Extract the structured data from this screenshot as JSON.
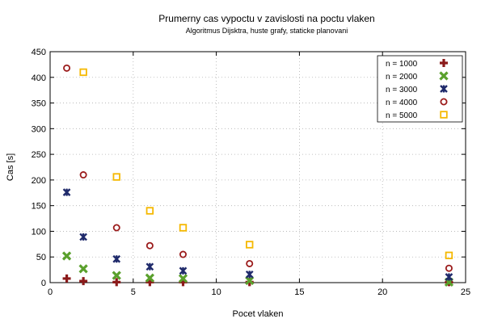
{
  "chart_data": {
    "type": "scatter",
    "title": "Prumerny cas vypoctu v zavislosti na poctu vlaken",
    "subtitle": "Algoritmus Dijsktra, huste grafy, staticke planovani",
    "xlabel": "Pocet vlaken",
    "ylabel": "Cas [s]",
    "xlim": [
      0,
      25
    ],
    "ylim": [
      0,
      450
    ],
    "xticks": [
      0,
      5,
      10,
      15,
      20,
      25
    ],
    "yticks": [
      0,
      50,
      100,
      150,
      200,
      250,
      300,
      350,
      400,
      450
    ],
    "grid": true,
    "legend_position": "top-right",
    "series": [
      {
        "name": "n = 1000",
        "marker": "plus",
        "color": "#8B1A1A",
        "points": [
          [
            1,
            8
          ],
          [
            2,
            3
          ],
          [
            4,
            1
          ],
          [
            6,
            1
          ],
          [
            8,
            1
          ],
          [
            12,
            1
          ],
          [
            24,
            1
          ]
        ]
      },
      {
        "name": "n = 2000",
        "marker": "cross",
        "color": "#5AA02C",
        "points": [
          [
            1,
            52
          ],
          [
            2,
            27
          ],
          [
            4,
            14
          ],
          [
            6,
            9
          ],
          [
            8,
            8
          ],
          [
            12,
            4
          ],
          [
            24,
            1
          ]
        ]
      },
      {
        "name": "n = 3000",
        "marker": "star",
        "color": "#1F2A6B",
        "points": [
          [
            1,
            176
          ],
          [
            2,
            89
          ],
          [
            4,
            46
          ],
          [
            6,
            31
          ],
          [
            8,
            23
          ],
          [
            12,
            16
          ],
          [
            24,
            11
          ]
        ]
      },
      {
        "name": "n = 4000",
        "marker": "circle",
        "color": "#9B1B1B",
        "points": [
          [
            1,
            418
          ],
          [
            2,
            210
          ],
          [
            4,
            107
          ],
          [
            6,
            72
          ],
          [
            8,
            55
          ],
          [
            12,
            37
          ],
          [
            24,
            28
          ]
        ]
      },
      {
        "name": "n = 5000",
        "marker": "square",
        "color": "#F5B800",
        "points": [
          [
            2,
            410
          ],
          [
            4,
            206
          ],
          [
            6,
            140
          ],
          [
            8,
            107
          ],
          [
            12,
            74
          ],
          [
            24,
            53
          ]
        ]
      }
    ]
  }
}
